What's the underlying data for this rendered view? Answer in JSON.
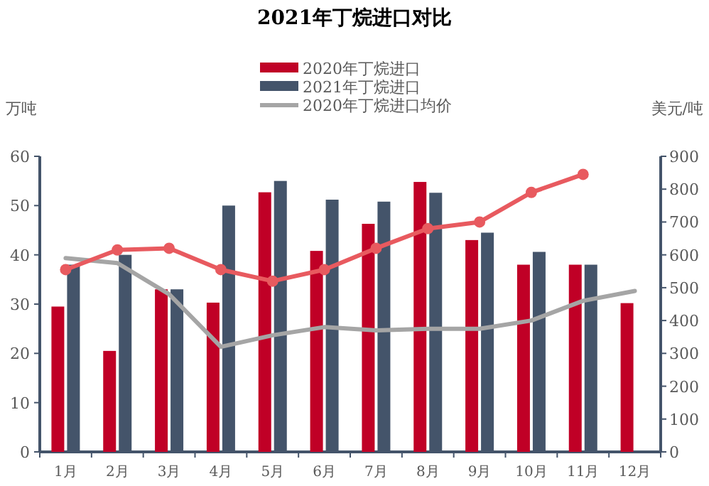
{
  "chart_data": {
    "type": "bar",
    "title": "2021年丁烷进口对比",
    "ylabel": "万吨",
    "y2label": "美元/吨",
    "categories": [
      "1月",
      "2月",
      "3月",
      "4月",
      "5月",
      "6月",
      "7月",
      "8月",
      "9月",
      "10月",
      "11月",
      "12月"
    ],
    "series": [
      {
        "name": "2020年丁烷进口",
        "color": "#c00026",
        "values": [
          29.5,
          20.5,
          33,
          30.3,
          52.7,
          40.8,
          46.3,
          54.8,
          43,
          38,
          38,
          30.2
        ]
      },
      {
        "name": "2021年丁烷进口",
        "color": "#44546a",
        "values": [
          38,
          40,
          33,
          50,
          55,
          51.2,
          50.8,
          52.6,
          44.5,
          40.6,
          38,
          null
        ]
      },
      {
        "name": "2020年丁烷进口均价",
        "type": "line",
        "axis": "y2",
        "color": "#a5a5a5",
        "marker": "none",
        "values": [
          590,
          575,
          480,
          320,
          355,
          380,
          370,
          375,
          375,
          400,
          460,
          490
        ]
      },
      {
        "type": "line",
        "axis": "y2",
        "color": "#e85a5f",
        "marker": "circle",
        "values": [
          555,
          615,
          620,
          555,
          520,
          555,
          620,
          680,
          700,
          790,
          845,
          null
        ]
      }
    ],
    "ylim": [
      0,
      60
    ],
    "yticks": [
      0,
      10,
      20,
      30,
      40,
      50,
      60
    ],
    "y2lim": [
      0,
      900
    ],
    "y2ticks": [
      0,
      100,
      200,
      300,
      400,
      500,
      600,
      700,
      800,
      900
    ],
    "legend": "top",
    "grid": false
  }
}
